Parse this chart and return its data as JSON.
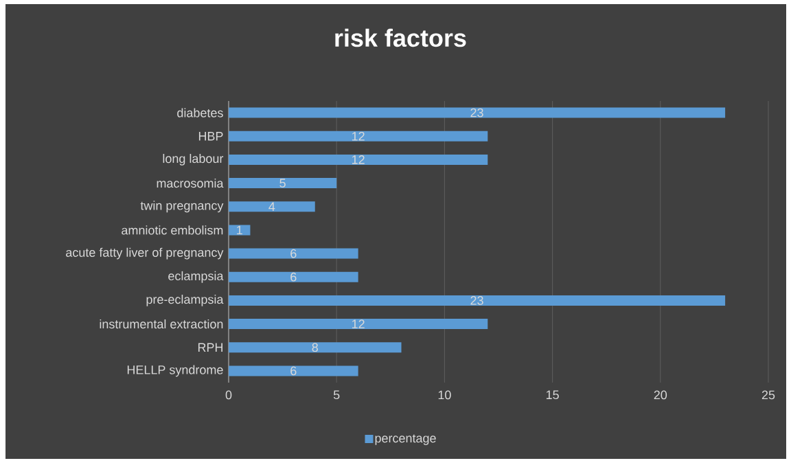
{
  "chart_data": {
    "type": "bar",
    "orientation": "horizontal",
    "title": "risk factors",
    "categories": [
      "diabetes",
      "HBP",
      "long labour",
      "macrosomia",
      "twin pregnancy",
      "amniotic embolism",
      "acute fatty liver of pregnancy",
      "eclampsia",
      "pre-eclampsia",
      "instrumental extraction",
      "RPH",
      "HELLP syndrome"
    ],
    "series": [
      {
        "name": "percentage",
        "color": "#5b9bd5",
        "values": [
          23,
          12,
          12,
          5,
          4,
          1,
          6,
          6,
          23,
          12,
          8,
          6
        ]
      }
    ],
    "xlim": [
      0,
      25
    ],
    "xticks": [
      0,
      5,
      10,
      15,
      20,
      25
    ],
    "grid": "x",
    "legend": "bottom",
    "data_labels": true
  }
}
